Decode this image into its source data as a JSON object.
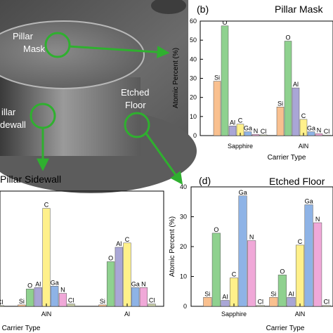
{
  "sem": {
    "labels": [
      {
        "key": "mask",
        "lines": [
          "Pillar",
          "Mask"
        ]
      },
      {
        "key": "floor",
        "lines": [
          "Etched",
          "Floor"
        ]
      },
      {
        "key": "sidewall",
        "lines": [
          "illar",
          "dewall"
        ]
      }
    ]
  },
  "colors": {
    "Si": "#f9c08f",
    "O": "#8fd18f",
    "Al": "#a9a6d6",
    "C": "#fff08a",
    "Ga": "#8eb3e6",
    "N": "#f0a8d8",
    "Cl": "#c3c9a4",
    "arrow": "#2fb02f"
  },
  "chart_data": [
    {
      "id": "b",
      "letter": "(b)",
      "title": "Pillar Mask",
      "type": "bar",
      "ylabel": "Atomic Percent (%)",
      "xlabel": "Carrier Type",
      "ylim": [
        0,
        60
      ],
      "yticks": [
        0,
        10,
        20,
        30,
        40,
        50,
        60
      ],
      "elements": [
        "Si",
        "O",
        "Al",
        "C",
        "Ga",
        "N",
        "Cl"
      ],
      "groups": [
        {
          "name": "Sapphire",
          "values": [
            28.5,
            57.5,
            5,
            6,
            2,
            0.6,
            0.4
          ]
        },
        {
          "name": "AlN",
          "values": [
            15,
            49.5,
            25,
            8.5,
            2,
            1,
            0.3
          ]
        }
      ]
    },
    {
      "id": "c",
      "letter": "",
      "title": "Pillar Sidewall",
      "type": "bar",
      "ylabel": "",
      "xlabel": "Carrier Type",
      "ylim": [
        0,
        40
      ],
      "yticks": [],
      "elements": [
        "Si",
        "O",
        "Al",
        "C",
        "Ga",
        "N",
        "Cl"
      ],
      "groups": [
        {
          "name": "",
          "values": [
            0,
            0,
            0,
            0,
            0,
            0,
            0.3
          ]
        },
        {
          "name": "AlN",
          "values": [
            0.5,
            6,
            6.5,
            34,
            7,
            4.5,
            0.8
          ]
        },
        {
          "name": "Al",
          "values": [
            0.5,
            15.5,
            20.5,
            22,
            6.5,
            6.5,
            0.8
          ]
        }
      ]
    },
    {
      "id": "d",
      "letter": "(d)",
      "title": "Etched Floor",
      "type": "bar",
      "ylabel": "Atomic Percent (%)",
      "xlabel": "Carrier Type",
      "ylim": [
        0,
        40
      ],
      "yticks": [
        0,
        10,
        20,
        30,
        40
      ],
      "elements": [
        "Si",
        "O",
        "Al",
        "C",
        "Ga",
        "N",
        "Cl"
      ],
      "groups": [
        {
          "name": "Sapphire",
          "values": [
            3,
            24.5,
            2,
            9.5,
            37,
            22,
            0.3
          ]
        },
        {
          "name": "AlN",
          "values": [
            3,
            10.5,
            3,
            20.5,
            34,
            28,
            0.3
          ]
        }
      ]
    }
  ]
}
